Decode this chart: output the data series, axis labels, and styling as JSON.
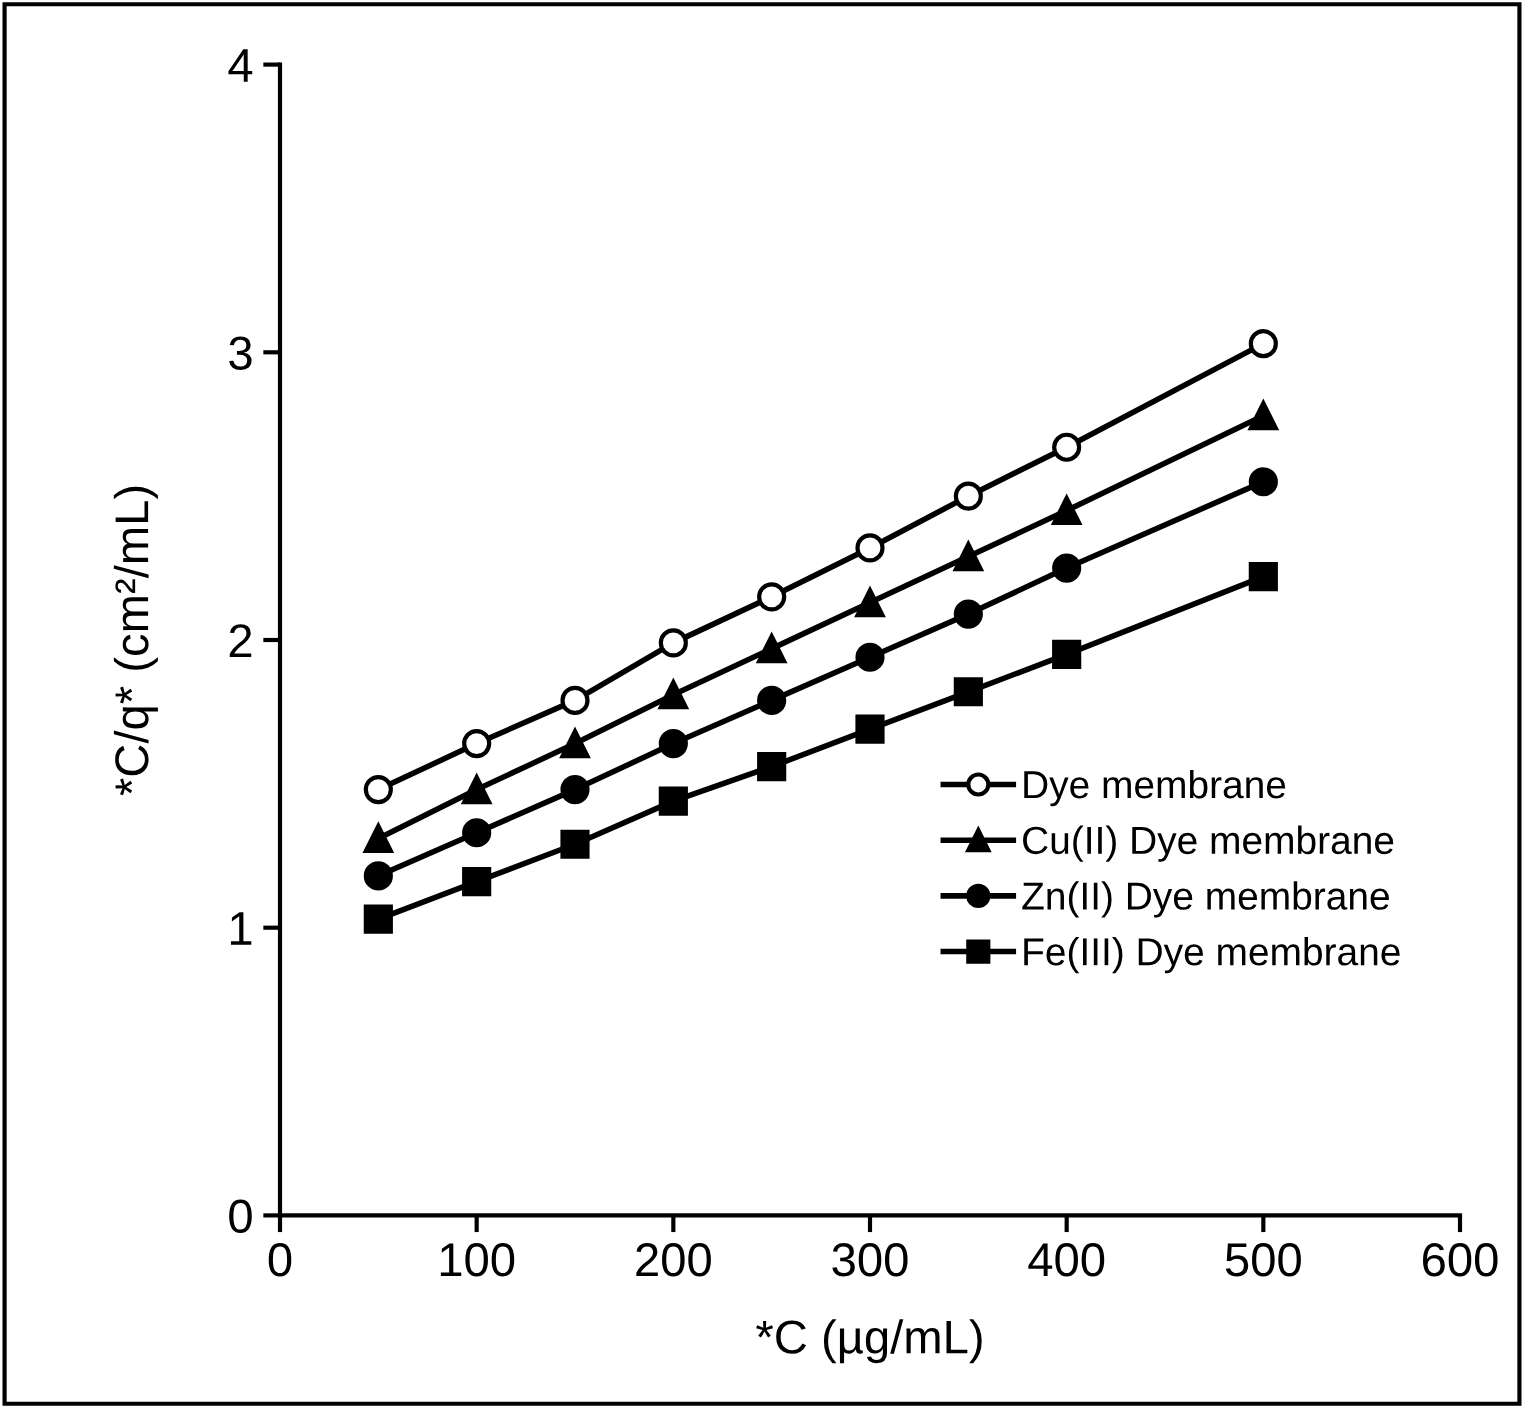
{
  "chart_data": {
    "type": "line",
    "xlabel": "*C (µg/mL)",
    "ylabel": "*C/q* (cm²/mL)",
    "x": [
      50,
      100,
      150,
      200,
      250,
      300,
      350,
      400,
      500
    ],
    "series": [
      {
        "name": "Dye membrane",
        "color": "#000000",
        "marker": "circle_open",
        "values": [
          1.48,
          1.64,
          1.79,
          1.99,
          2.15,
          2.32,
          2.5,
          2.67,
          3.03
        ]
      },
      {
        "name": "Cu(II) Dye membrane",
        "color": "#000000",
        "marker": "triangle",
        "values": [
          1.31,
          1.48,
          1.64,
          1.81,
          1.97,
          2.13,
          2.29,
          2.45,
          2.78
        ]
      },
      {
        "name": "Zn(II) Dye membrane",
        "color": "#000000",
        "marker": "circle",
        "values": [
          1.18,
          1.33,
          1.48,
          1.64,
          1.79,
          1.94,
          2.09,
          2.25,
          2.55
        ]
      },
      {
        "name": "Fe(III) Dye membrane",
        "color": "#000000",
        "marker": "square",
        "values": [
          1.03,
          1.16,
          1.29,
          1.44,
          1.56,
          1.69,
          1.82,
          1.95,
          2.22
        ]
      }
    ],
    "xlim": [
      0,
      600
    ],
    "xticks": [
      0,
      100,
      200,
      300,
      400,
      500,
      600
    ],
    "ylim": [
      0,
      4
    ],
    "yticks": [
      0,
      1,
      2,
      3,
      4
    ],
    "grid": false,
    "legend": "lower right",
    "line_style": "solid"
  }
}
